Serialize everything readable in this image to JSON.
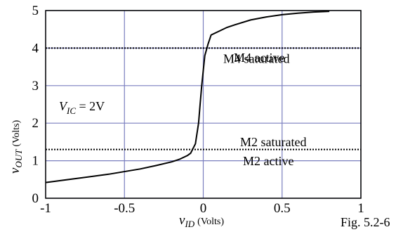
{
  "chart_data": {
    "type": "line",
    "xlabel": {
      "var": "v",
      "sub": "ID",
      "unit": "(Volts)"
    },
    "ylabel": {
      "var": "v",
      "sub": "OUT",
      "unit": "(Volts)"
    },
    "xlim": [
      -1,
      1
    ],
    "ylim": [
      0,
      5
    ],
    "x_ticks": [
      -1,
      -0.5,
      0,
      0.5,
      1
    ],
    "x_tick_labels": [
      "-1",
      "-0.5",
      "0",
      "0.5",
      "1"
    ],
    "y_ticks": [
      0,
      1,
      2,
      3,
      4,
      5
    ],
    "y_tick_labels": [
      "0",
      "1",
      "2",
      "3",
      "4",
      "5"
    ],
    "grid": true,
    "series": [
      {
        "x": [
          -1.0,
          -0.8,
          -0.6,
          -0.4,
          -0.3,
          -0.2,
          -0.15,
          -0.1,
          -0.08,
          -0.05,
          -0.03,
          -0.02,
          -0.01,
          0.0,
          0.01,
          0.03,
          0.05,
          0.1,
          0.15,
          0.2,
          0.3,
          0.4,
          0.5,
          0.6,
          0.7,
          0.8
        ],
        "y": [
          0.42,
          0.53,
          0.64,
          0.78,
          0.87,
          0.97,
          1.04,
          1.14,
          1.2,
          1.45,
          2.0,
          2.5,
          3.0,
          3.4,
          3.8,
          4.1,
          4.35,
          4.45,
          4.55,
          4.62,
          4.75,
          4.83,
          4.89,
          4.93,
          4.96,
          4.98
        ],
        "color": "#000000"
      }
    ],
    "reference_lines": [
      {
        "y": 4.0,
        "style": "dotted"
      },
      {
        "y": 1.3,
        "style": "dotted"
      }
    ],
    "annotations": {
      "m4_active": "M4 active",
      "m4_saturated": "M4 saturated",
      "m2_saturated": "M2 saturated",
      "m2_active": "M2 active",
      "vic_var": "V",
      "vic_sub": "IC",
      "vic_value": " =  2V"
    },
    "figure_label": "Fig. 5.2-6"
  }
}
